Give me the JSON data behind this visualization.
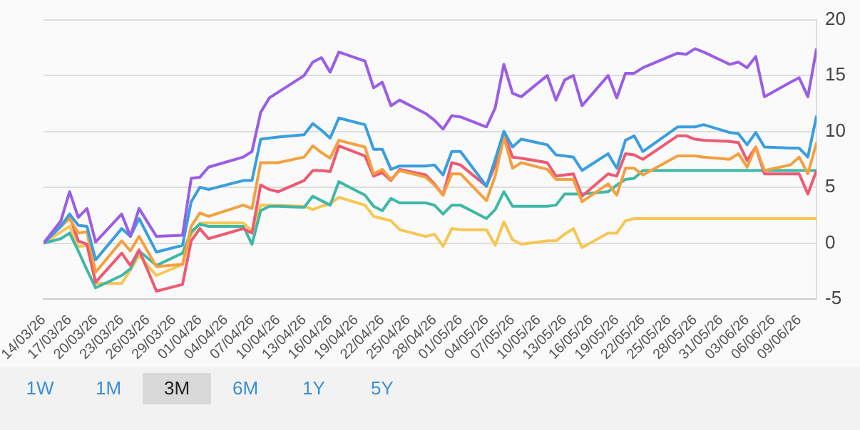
{
  "chart_data": {
    "type": "line",
    "x": [
      "--03-14",
      "--03-16",
      "--03-17",
      "--03-18",
      "--03-19",
      "--03-20",
      "--03-23",
      "--03-24",
      "--03-25",
      "--03-27",
      "--03-30",
      "--03-31",
      "--04-01",
      "--04-02",
      "--04-06",
      "--04-07",
      "--04-08",
      "--04-09",
      "--04-10",
      "--04-13",
      "--04-14",
      "--04-15",
      "--04-16",
      "--04-17",
      "--04-20",
      "--04-21",
      "--04-22",
      "--04-23",
      "--04-24",
      "--04-27",
      "--04-28",
      "--04-29",
      "--04-30",
      "--05-01",
      "--05-04",
      "--05-05",
      "--05-06",
      "--05-07",
      "--05-08",
      "--05-11",
      "--05-12",
      "--05-13",
      "--05-14",
      "--05-15",
      "--05-18",
      "--05-19",
      "--05-20",
      "--05-21",
      "--05-22",
      "--05-26",
      "--05-27",
      "--05-28",
      "--05-29",
      "--06-01",
      "--06-02",
      "--06-03",
      "--06-04",
      "--06-05",
      "--06-08",
      "--06-09",
      "--06-10",
      "--06-11"
    ],
    "series": [
      {
        "color": "#9b5de5",
        "values": [
          0,
          2,
          4.6,
          2.3,
          3.1,
          0.1,
          2.6,
          0.6,
          3.1,
          0.6,
          0.7,
          5.8,
          5.9,
          6.8,
          7.7,
          8.2,
          11.7,
          13,
          13.5,
          15,
          16.2,
          16.6,
          15.3,
          17.1,
          16.3,
          13.9,
          14.4,
          12.3,
          12.8,
          11.6,
          11,
          10.2,
          11.4,
          11.3,
          10.4,
          12.1,
          16,
          13.4,
          13.1,
          15,
          12.8,
          14.6,
          15,
          12.3,
          15,
          13,
          15.2,
          15.2,
          15.7,
          17,
          16.9,
          17.4,
          17.1,
          16,
          16.2,
          15.7,
          16.7,
          13.1,
          14.4,
          14.8,
          13.1,
          17.4
        ]
      },
      {
        "color": "#3a9ee0",
        "values": [
          0,
          1.5,
          2.6,
          1.6,
          1.5,
          -1.5,
          1.3,
          0.6,
          2.2,
          -0.8,
          -0.2,
          3.7,
          5,
          4.8,
          5.6,
          5.6,
          9.3,
          9.4,
          9.5,
          9.7,
          10.7,
          10.1,
          9.4,
          11.2,
          10.6,
          8.4,
          8.4,
          6.6,
          6.9,
          6.9,
          7,
          6.1,
          8.2,
          8.2,
          5.1,
          7.5,
          10,
          8.6,
          9.3,
          8.8,
          7.9,
          7.8,
          7.7,
          6.5,
          8,
          6.7,
          9.2,
          9.6,
          8.2,
          10.4,
          10.4,
          10.4,
          10.6,
          9.9,
          9.8,
          8.8,
          9.9,
          8.6,
          8.5,
          8.5,
          7.7,
          11.4
        ]
      },
      {
        "color": "#f5a03f",
        "values": [
          0,
          1.5,
          2.2,
          0.9,
          1,
          -2.6,
          0.2,
          -0.7,
          0.6,
          -2.1,
          -1.9,
          1.5,
          2.7,
          2.4,
          3.4,
          3.1,
          7.2,
          7.2,
          7.2,
          7.7,
          8.7,
          8.1,
          7.6,
          9.2,
          8.6,
          6.2,
          6.6,
          5.7,
          6.5,
          5.9,
          5.2,
          4.3,
          6.2,
          6.2,
          3.8,
          6,
          9.5,
          6.7,
          7.2,
          6.6,
          5.7,
          5.7,
          5.7,
          3.7,
          5.3,
          4.3,
          6.7,
          6.7,
          6.1,
          7.8,
          7.8,
          7.8,
          7.7,
          7.5,
          8,
          6.8,
          8.6,
          6.5,
          7,
          7.7,
          6.2,
          9
        ]
      },
      {
        "color": "#ee5a72",
        "values": [
          0,
          1.6,
          2.4,
          0.2,
          -0.1,
          -3.5,
          -0.9,
          -2,
          -0.6,
          -4.3,
          -3.7,
          0.2,
          1.3,
          0.4,
          1.3,
          0.9,
          5.2,
          4.8,
          4.6,
          5.6,
          6.5,
          6.5,
          6.4,
          8.7,
          7.8,
          6,
          6.3,
          5.6,
          6.6,
          6.1,
          5.3,
          4.3,
          7.2,
          7,
          5.1,
          7,
          9.8,
          7.7,
          7.6,
          7.2,
          6,
          6.1,
          6.2,
          4.2,
          6.2,
          6,
          8,
          7.9,
          7.5,
          9.6,
          9.6,
          9.3,
          9.2,
          9.1,
          9,
          7.4,
          8.6,
          6.2,
          6.2,
          6.2,
          4.4,
          6.5
        ]
      },
      {
        "color": "#3fb8a6",
        "values": [
          0,
          0.4,
          0.9,
          -0.7,
          -2.4,
          -4,
          -2.9,
          -2.3,
          -0.7,
          -2,
          -0.9,
          1,
          1.7,
          1.5,
          1.5,
          -0.1,
          2.9,
          3.3,
          3.3,
          3.2,
          4.2,
          3.8,
          3.4,
          5.5,
          4.3,
          3.3,
          2.9,
          4,
          3.6,
          3.6,
          3.4,
          2.6,
          3.4,
          3.4,
          2.2,
          3,
          4.6,
          3.3,
          3.3,
          3.3,
          3.4,
          4.4,
          4.4,
          4.4,
          4.6,
          5.2,
          5.7,
          5.8,
          6.5,
          6.5,
          6.5,
          6.5,
          6.5,
          6.5,
          6.5,
          6.5,
          6.5,
          6.5,
          6.5,
          6.5,
          6.5,
          6.5
        ]
      },
      {
        "color": "#f7c653",
        "values": [
          0,
          1,
          1.5,
          -0.3,
          -0.2,
          -3.6,
          -3.6,
          -2.4,
          -1.1,
          -2.9,
          -1.9,
          0.8,
          1.8,
          1.8,
          1.8,
          1.1,
          3.4,
          3.4,
          3.4,
          3.3,
          3,
          3.3,
          3.5,
          4.1,
          3.4,
          2.4,
          2.2,
          2,
          1.2,
          0.6,
          0.8,
          -0.3,
          1.3,
          1.2,
          1.2,
          -0.2,
          1.9,
          0.3,
          -0.1,
          0.2,
          0.2,
          0.8,
          1.3,
          -0.4,
          0.9,
          0.9,
          2,
          2.2,
          2.2,
          2.2,
          2.2,
          2.2,
          2.2,
          2.2,
          2.2,
          2.2,
          2.2,
          2.2,
          2.2,
          2.2,
          2.2,
          2.2
        ]
      }
    ],
    "xlim": [
      "--03-14",
      "--06-11"
    ],
    "xticks": [
      {
        "value": "--03-14",
        "label": "14/03/26"
      },
      {
        "value": "--03-17",
        "label": "17/03/26"
      },
      {
        "value": "--03-20",
        "label": "20/03/26"
      },
      {
        "value": "--03-23",
        "label": "23/03/26"
      },
      {
        "value": "--03-26",
        "label": "26/03/26"
      },
      {
        "value": "--03-29",
        "label": "29/03/26"
      },
      {
        "value": "--04-01",
        "label": "01/04/26"
      },
      {
        "value": "--04-04",
        "label": "04/04/26"
      },
      {
        "value": "--04-07",
        "label": "07/04/26"
      },
      {
        "value": "--04-10",
        "label": "10/04/26"
      },
      {
        "value": "--04-13",
        "label": "13/04/26"
      },
      {
        "value": "--04-16",
        "label": "16/04/26"
      },
      {
        "value": "--04-19",
        "label": "19/04/26"
      },
      {
        "value": "--04-22",
        "label": "22/04/26"
      },
      {
        "value": "--04-25",
        "label": "25/04/26"
      },
      {
        "value": "--04-28",
        "label": "28/04/26"
      },
      {
        "value": "--05-01",
        "label": "01/05/26"
      },
      {
        "value": "--05-04",
        "label": "04/05/26"
      },
      {
        "value": "--05-07",
        "label": "07/05/26"
      },
      {
        "value": "--05-10",
        "label": "10/05/26"
      },
      {
        "value": "--05-13",
        "label": "13/05/26"
      },
      {
        "value": "--05-16",
        "label": "16/05/26"
      },
      {
        "value": "--05-19",
        "label": "19/05/26"
      },
      {
        "value": "--05-22",
        "label": "22/05/26"
      },
      {
        "value": "--05-25",
        "label": "25/05/26"
      },
      {
        "value": "--05-28",
        "label": "28/05/26"
      },
      {
        "value": "--05-31",
        "label": "31/05/26"
      },
      {
        "value": "--06-03",
        "label": "03/06/26"
      },
      {
        "value": "--06-06",
        "label": "06/06/26"
      },
      {
        "value": "--06-09",
        "label": "09/06/26"
      }
    ],
    "ylim": [
      -5,
      20
    ],
    "yticks": [
      -5,
      0,
      5,
      10,
      15,
      20
    ],
    "grid": "y",
    "legend": false,
    "marker": "none",
    "line_style": "solid",
    "annotations": [
      "1W",
      "1M",
      "3M",
      "6M",
      "1Y",
      "5Y"
    ]
  }
}
